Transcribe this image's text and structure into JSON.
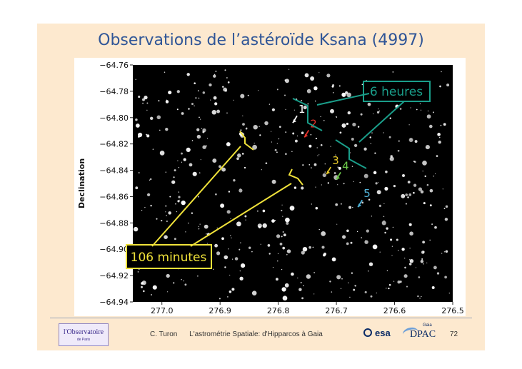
{
  "slide_title": "Observations de l’astéroïde Ksana (4997)",
  "chart_data": {
    "type": "scatter",
    "ylabel": "Declination",
    "xlabel": "",
    "x_ticks": [
      "277.0",
      "276.9",
      "276.8",
      "276.7",
      "276.6",
      "276.5"
    ],
    "y_ticks": [
      "−64.76",
      "−64.78",
      "−64.80",
      "−64.82",
      "−64.84",
      "−64.86",
      "−64.88",
      "−64.90",
      "−64.92",
      "−64.94"
    ],
    "xlim": [
      277.05,
      276.5
    ],
    "ylim": [
      -64.94,
      -64.76
    ],
    "x_reversed": true,
    "background": "#000000",
    "observations": [
      {
        "label": "1",
        "color": "#ffffff",
        "x": 276.775,
        "y": -64.804
      },
      {
        "label": "2",
        "color": "#e8332b",
        "x": 276.755,
        "y": -64.815
      },
      {
        "label": "3",
        "color": "#e5c82a",
        "x": 276.717,
        "y": -64.843
      },
      {
        "label": "4",
        "color": "#6cc84a",
        "x": 276.7,
        "y": -64.847
      },
      {
        "label": "5",
        "color": "#4fb3d9",
        "x": 276.663,
        "y": -64.868
      }
    ],
    "annotations": {
      "heures": {
        "text": "6 heures",
        "color": "#1a9e8a"
      },
      "minutes": {
        "text": "106 minutes",
        "color": "#f0e23a"
      }
    },
    "star_seed": 4997
  },
  "footer": {
    "author": "C. Turon",
    "talk_title": "L'astrométrie Spatiale: d'Hipparcos à Gaia",
    "page_number": "72"
  },
  "logos": {
    "observatoire": "l'Observatoire",
    "observatoire_sub": "de Paris",
    "esa": "esa",
    "dpac": "DPAC",
    "dpac_gaia": "Gaia"
  }
}
